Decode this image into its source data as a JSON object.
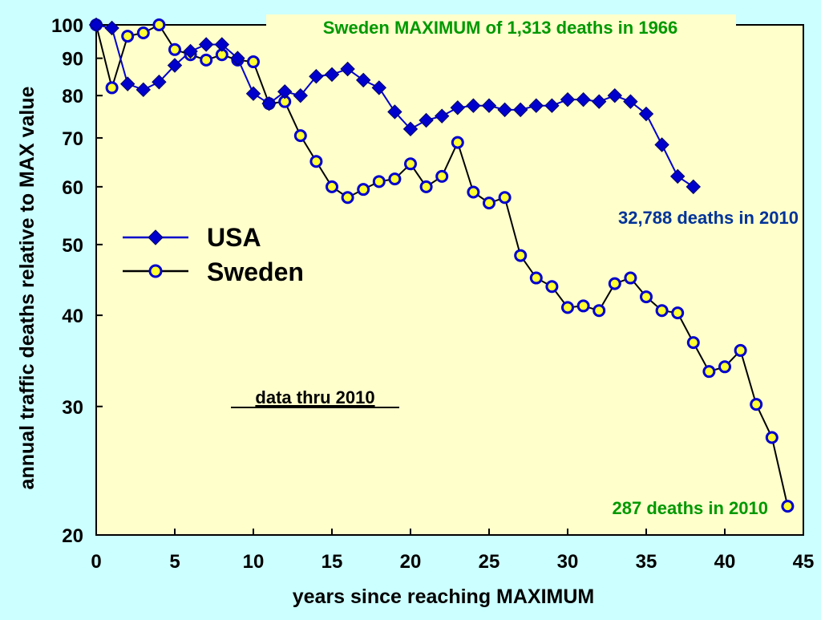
{
  "colors": {
    "page_background": "#ccffff",
    "plot_background": "#ffffcc",
    "usa_series": "#0000cc",
    "sweden_fill": "#ffff33",
    "sweden_edge": "#0000cc",
    "sweden_line": "#000000",
    "green_annotation": "#009900",
    "blue_annotation": "#003399"
  },
  "chart_data": {
    "type": "line",
    "title": "",
    "xlabel": "years since reaching MAXIMUM",
    "ylabel": "annual traffic deaths relative to MAX value",
    "xlim": [
      0,
      45
    ],
    "ylim": [
      20,
      100
    ],
    "y_scale": "log",
    "x_ticks": [
      0,
      5,
      10,
      15,
      20,
      25,
      30,
      35,
      40,
      45
    ],
    "y_ticks": [
      20,
      30,
      40,
      50,
      60,
      70,
      80,
      90,
      100
    ],
    "grid": false,
    "legend_position": "middle-left",
    "series": [
      {
        "name": "USA",
        "marker": "diamond",
        "x": [
          0,
          1,
          2,
          3,
          4,
          5,
          6,
          7,
          8,
          9,
          10,
          11,
          12,
          13,
          14,
          15,
          16,
          17,
          18,
          19,
          20,
          21,
          22,
          23,
          24,
          25,
          26,
          27,
          28,
          29,
          30,
          31,
          32,
          33,
          34,
          35,
          36,
          37,
          38
        ],
        "values": [
          100,
          99,
          83,
          81.5,
          83.5,
          88,
          92,
          94,
          94,
          90,
          80.5,
          78,
          81,
          80,
          85,
          85.5,
          87,
          84,
          82,
          76,
          72,
          74,
          75,
          77,
          77.5,
          77.5,
          76.5,
          76.5,
          77.5,
          77.5,
          79,
          79,
          78.5,
          80,
          78.5,
          75.5,
          68.5,
          62,
          60
        ]
      },
      {
        "name": "Sweden",
        "marker": "circle",
        "x": [
          0,
          1,
          2,
          3,
          4,
          5,
          6,
          7,
          8,
          9,
          10,
          11,
          12,
          13,
          14,
          15,
          16,
          17,
          18,
          19,
          20,
          21,
          22,
          23,
          24,
          25,
          26,
          27,
          28,
          29,
          30,
          31,
          32,
          33,
          34,
          35,
          36,
          37,
          38,
          39,
          40,
          41,
          42,
          43,
          44
        ],
        "values": [
          100,
          82,
          96.5,
          97.5,
          100,
          92.5,
          91,
          89.5,
          91,
          89.5,
          89,
          78,
          78.5,
          70.5,
          65,
          60,
          58,
          59.5,
          61,
          61.5,
          64.5,
          60,
          62,
          69,
          59,
          57,
          58,
          48.3,
          45,
          43.8,
          41,
          41.2,
          40.6,
          44.2,
          45,
          42.4,
          40.6,
          40.3,
          36.7,
          33.5,
          34,
          35.8,
          30.2,
          27.2,
          21.9
        ]
      }
    ],
    "annotations": [
      {
        "text": "Sweden MAXIMUM of  1,313 deaths in 1966",
        "color": "#009900"
      },
      {
        "text": "32,788  deaths in 2010",
        "color": "#003399"
      },
      {
        "text": "287 deaths in 2010",
        "color": "#009900"
      },
      {
        "text": "data thru 2010",
        "color": "#000000",
        "underline": true
      }
    ]
  }
}
